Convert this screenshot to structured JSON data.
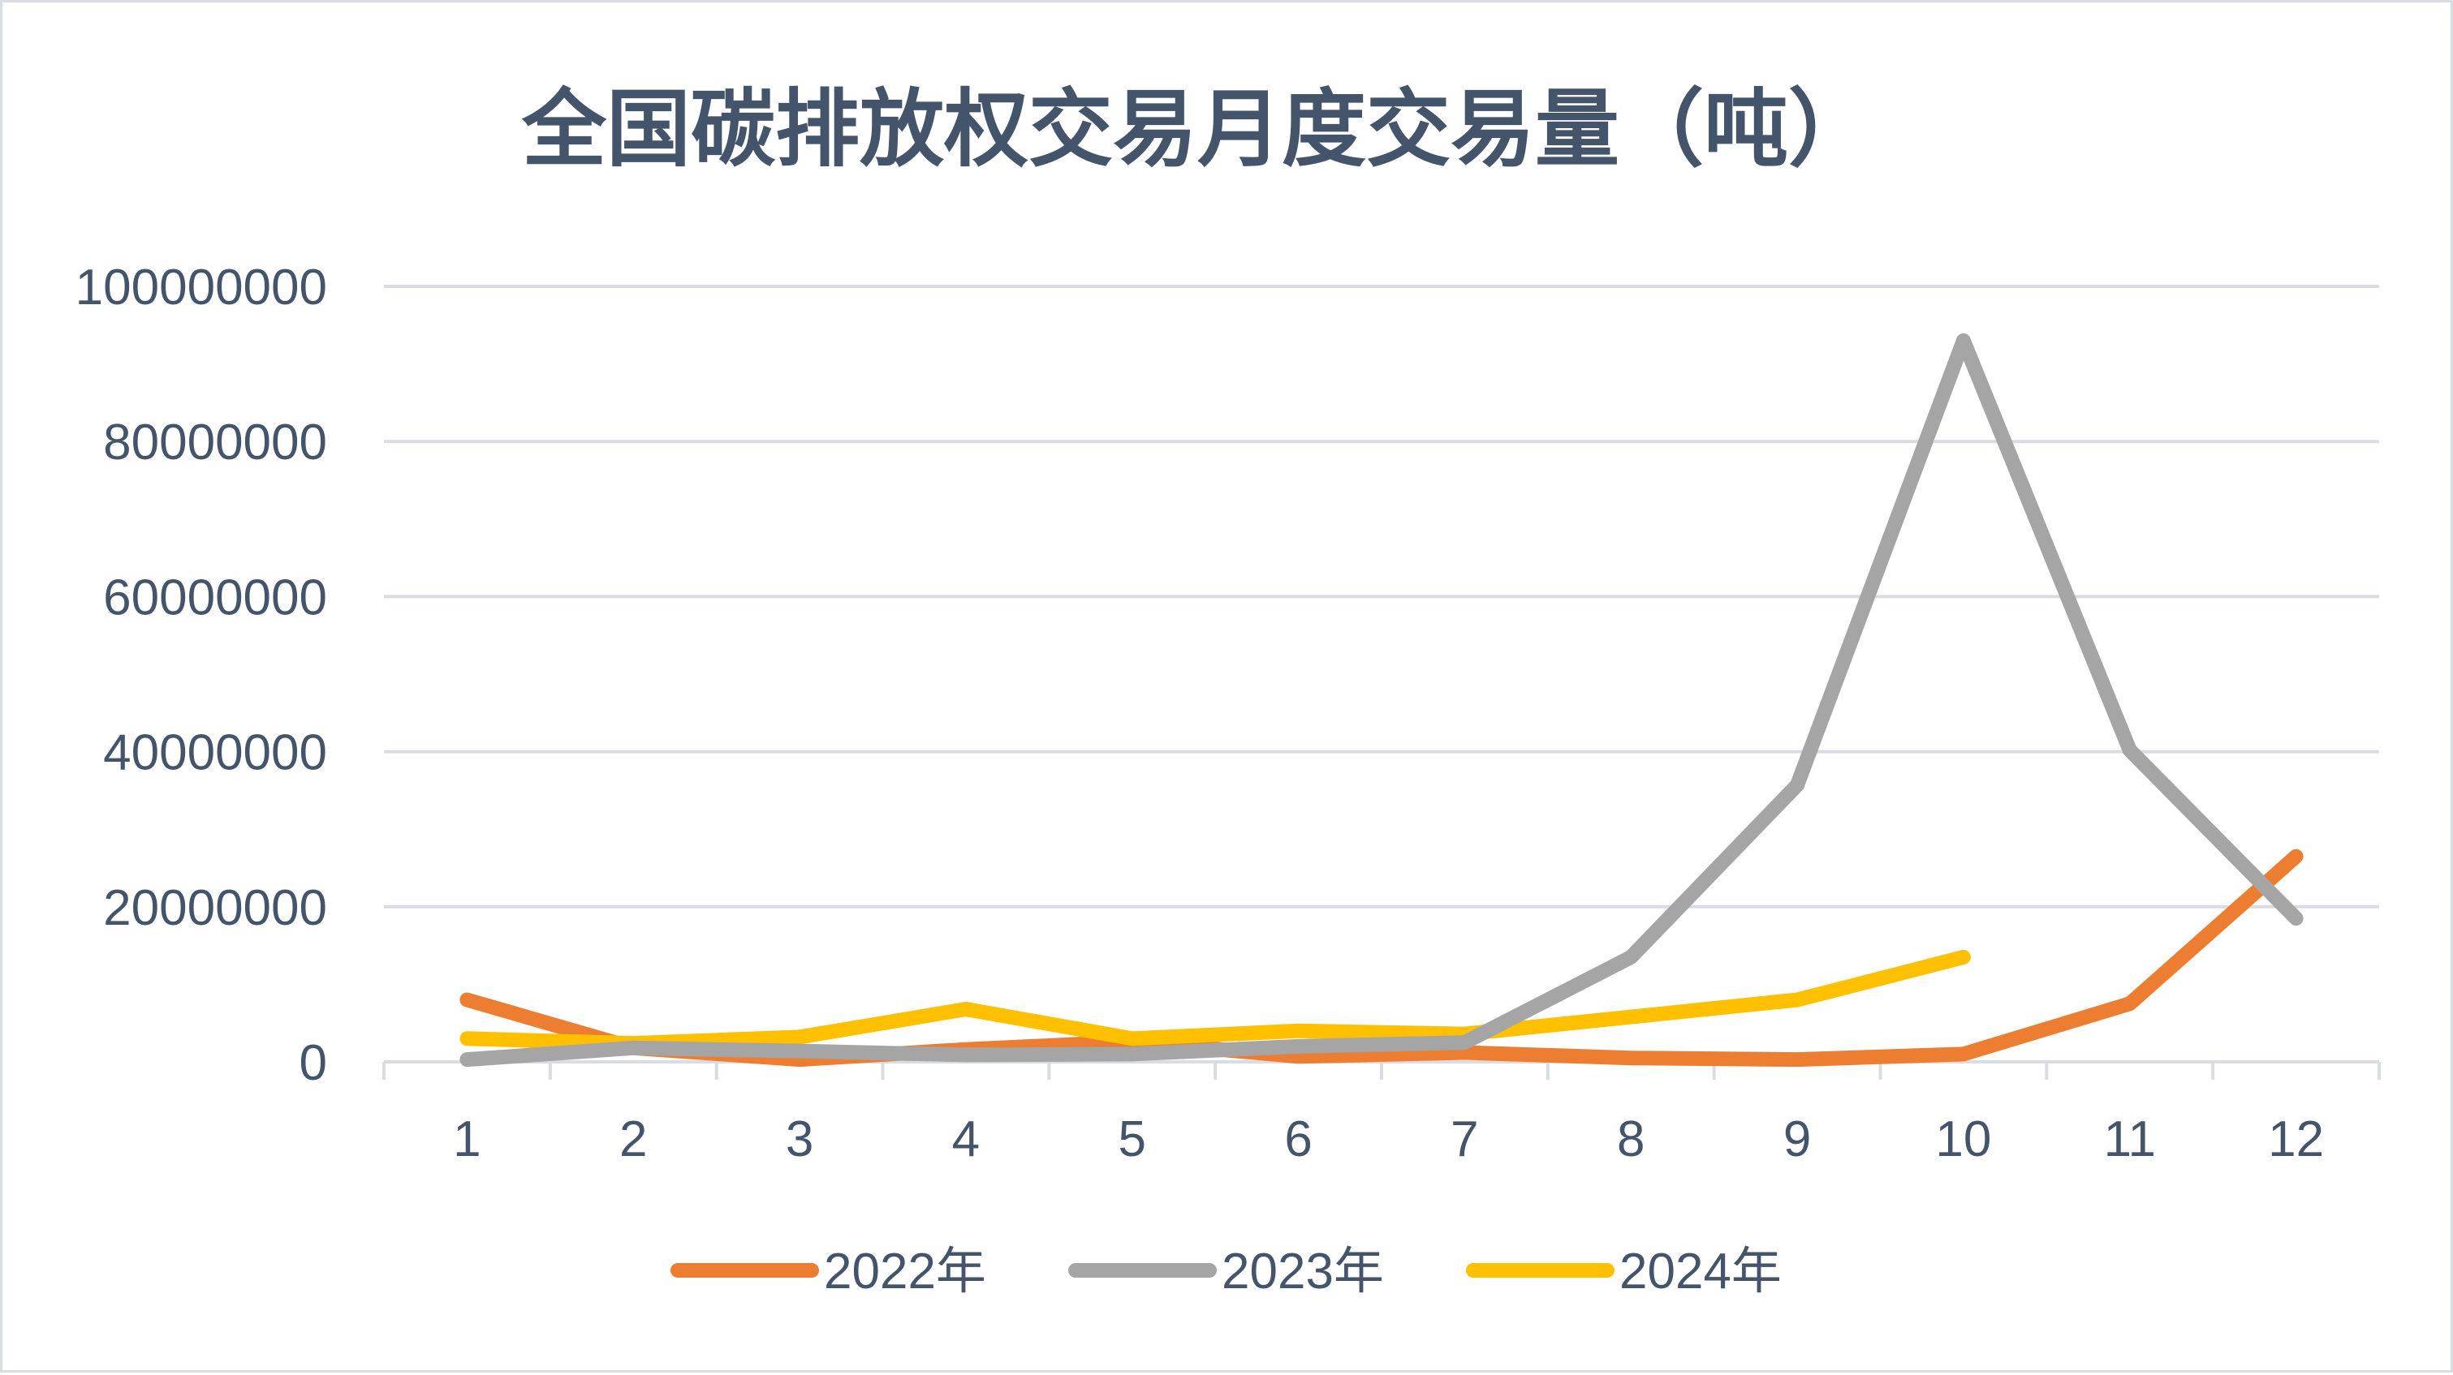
{
  "chart_data": {
    "type": "line",
    "title": "全国碳排放权交易月度交易量（吨）",
    "xlabel": "",
    "ylabel": "",
    "categories": [
      "1",
      "2",
      "3",
      "4",
      "5",
      "6",
      "7",
      "8",
      "9",
      "10",
      "11",
      "12"
    ],
    "y_ticks": [
      "0",
      "20000000",
      "40000000",
      "60000000",
      "80000000",
      "100000000"
    ],
    "ylim": [
      0,
      100000000
    ],
    "grid": true,
    "legend_position": "bottom",
    "series": [
      {
        "name": "2022年",
        "color": "#ed7d31",
        "values": [
          8000000,
          1800000,
          300000,
          1600000,
          2600000,
          700000,
          1200000,
          500000,
          300000,
          1000000,
          7500000,
          26500000
        ]
      },
      {
        "name": "2023年",
        "color": "#a5a5a5",
        "values": [
          300000,
          1800000,
          1400000,
          900000,
          1000000,
          2000000,
          2500000,
          13500000,
          35700000,
          93000000,
          40200000,
          18500000
        ]
      },
      {
        "name": "2024年",
        "color": "#ffc000",
        "values": [
          3000000,
          2400000,
          3200000,
          6800000,
          3000000,
          4000000,
          3600000,
          5800000,
          8000000,
          13500000,
          null,
          null
        ]
      }
    ]
  }
}
